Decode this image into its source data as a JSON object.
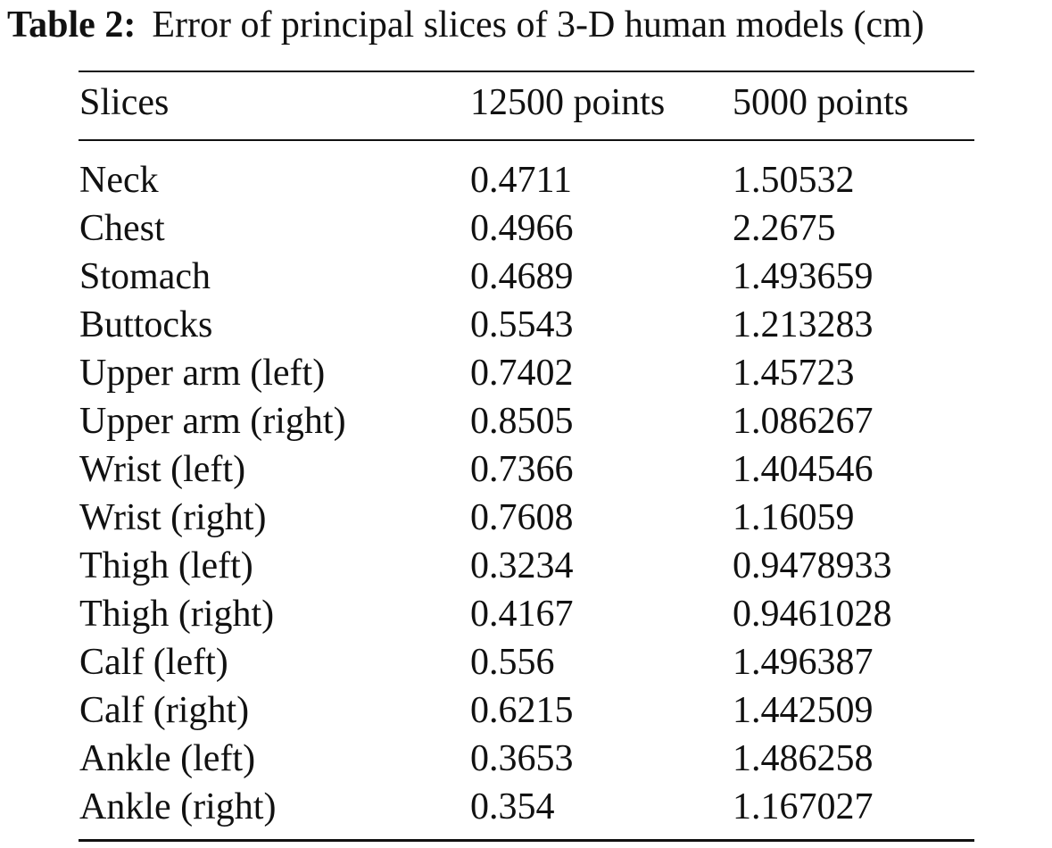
{
  "caption": {
    "label": "Table 2:",
    "text": "Error of principal slices of 3-D human models (cm)"
  },
  "table": {
    "headers": [
      "Slices",
      "12500 points",
      "5000 points"
    ],
    "rows": [
      [
        "Neck",
        "0.4711",
        "1.50532"
      ],
      [
        "Chest",
        "0.4966",
        "2.2675"
      ],
      [
        "Stomach",
        "0.4689",
        "1.493659"
      ],
      [
        "Buttocks",
        "0.5543",
        "1.213283"
      ],
      [
        "Upper arm (left)",
        "0.7402",
        "1.45723"
      ],
      [
        "Upper arm (right)",
        "0.8505",
        "1.086267"
      ],
      [
        "Wrist (left)",
        "0.7366",
        "1.404546"
      ],
      [
        "Wrist (right)",
        "0.7608",
        "1.16059"
      ],
      [
        "Thigh (left)",
        "0.3234",
        "0.9478933"
      ],
      [
        "Thigh (right)",
        "0.4167",
        "0.9461028"
      ],
      [
        "Calf (left)",
        "0.556",
        "1.496387"
      ],
      [
        "Calf (right)",
        "0.6215",
        "1.442509"
      ],
      [
        "Ankle (left)",
        "0.3653",
        "1.486258"
      ],
      [
        "Ankle (right)",
        "0.354",
        "1.167027"
      ]
    ]
  }
}
